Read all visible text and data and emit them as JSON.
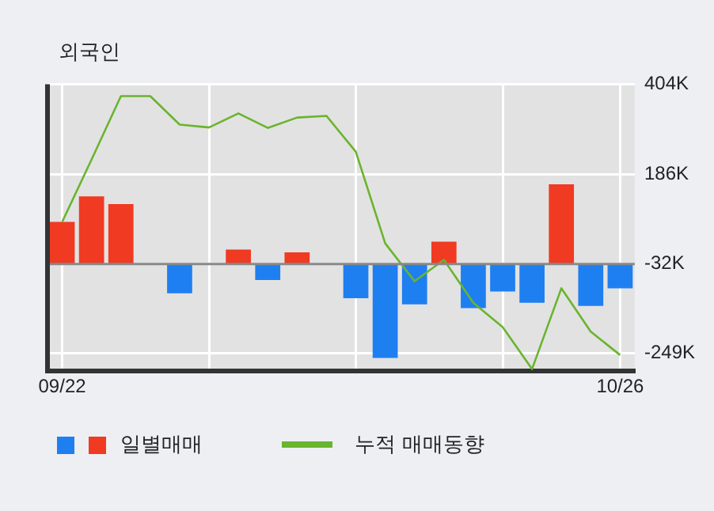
{
  "chart_data": {
    "type": "bar",
    "title": "외국인",
    "categories": [
      "09/22",
      null,
      null,
      null,
      null,
      null,
      null,
      null,
      null,
      null,
      null,
      null,
      null,
      null,
      null,
      null,
      null,
      null,
      null,
      "10/26"
    ],
    "series": [
      {
        "name": "일별매매",
        "color": "#1e7ff0",
        "base": [
          -32,
          -32,
          -32,
          null,
          -32,
          null,
          -32,
          -32,
          -32,
          null,
          -32,
          -32,
          -32,
          -32,
          -32,
          -32,
          -32,
          -32,
          -32,
          -32
        ],
        "values": [
          102,
          164,
          145,
          null,
          -71,
          null,
          35,
          -39,
          28,
          null,
          -83,
          -228,
          -98,
          54,
          -107,
          -67,
          -94,
          193,
          -102,
          -59
        ],
        "colors": [
          "#f03a22",
          "#f03a22",
          "#f03a22",
          "#1e7ff0",
          "#1e7ff0",
          "#1e7ff0",
          "#f03a22",
          "#1e7ff0",
          "#f03a22",
          "#1e7ff0",
          "#1e7ff0",
          "#1e7ff0",
          "#1e7ff0",
          "#f03a22",
          "#1e7ff0",
          "#1e7ff0",
          "#1e7ff0",
          "#f03a22",
          "#1e7ff0",
          "#1e7ff0"
        ]
      },
      {
        "type": "line",
        "name": "누적 매매동향",
        "color": "#6ab42e",
        "values": [
          70,
          221,
          375,
          375,
          306,
          299,
          333,
          298,
          323,
          327,
          240,
          18,
          -74,
          -22,
          -126,
          -185,
          -287,
          -91,
          -196,
          -253
        ]
      }
    ],
    "ylim": [
      -292,
      404
    ],
    "yticks": [
      {
        "value": 404,
        "label": "404K"
      },
      {
        "value": 186,
        "label": "186K"
      },
      {
        "value": -32,
        "label": "-32K"
      },
      {
        "value": -249,
        "label": "-249K"
      }
    ],
    "ref_lines": [
      {
        "axis": "y",
        "value": -32,
        "color": "#888888"
      }
    ],
    "grid": true,
    "legend": "bottom",
    "marker": "none",
    "line_style": "solid"
  }
}
